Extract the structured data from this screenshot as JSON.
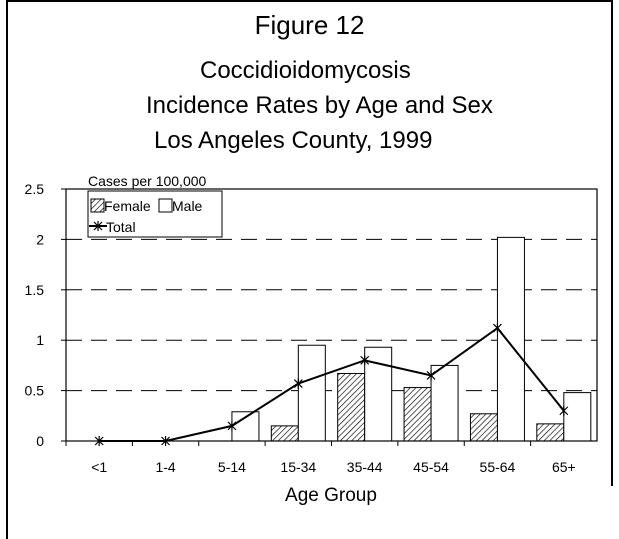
{
  "figure_label": "Figure 12",
  "chart_data": {
    "type": "bar",
    "title": [
      "Coccidioidomycosis",
      "Incidence Rates by Age and Sex",
      "Los Angeles County, 1999"
    ],
    "xlabel": "Age Group",
    "ylabel": "Cases per 100,000",
    "categories": [
      "<1",
      "1-4",
      "5-14",
      "15-34",
      "35-44",
      "45-54",
      "55-64",
      "65+"
    ],
    "series": [
      {
        "name": "Female",
        "type": "bar",
        "pattern": "hatched",
        "values": [
          0,
          0,
          0,
          0.15,
          0.67,
          0.53,
          0.27,
          0.17
        ]
      },
      {
        "name": "Male",
        "type": "bar",
        "pattern": "open",
        "values": [
          0,
          0,
          0.29,
          0.95,
          0.93,
          0.75,
          2.02,
          0.48
        ]
      },
      {
        "name": "Total",
        "type": "line",
        "marker": "star",
        "values": [
          0,
          0,
          0.15,
          0.57,
          0.8,
          0.65,
          1.12,
          0.3
        ]
      }
    ],
    "ylim": [
      0,
      2.5
    ],
    "yticks": [
      "0",
      "0.5",
      "1",
      "1.5",
      "2",
      "2.5"
    ],
    "grid": "dashed horizontal",
    "legend": "top-left"
  }
}
